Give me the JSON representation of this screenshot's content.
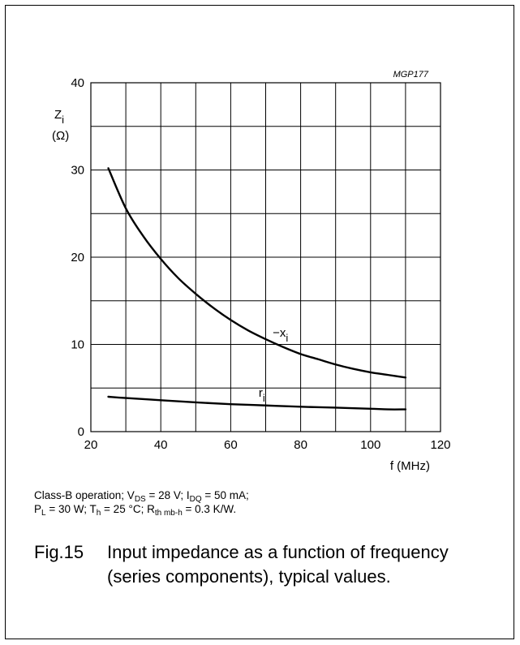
{
  "chart_data": {
    "type": "line",
    "code": "MGP177",
    "ylabel_symbol": "Z",
    "ylabel_sub": "i",
    "ylabel_unit": "(Ω)",
    "xlabel": "f (MHz)",
    "xlim": [
      20,
      120
    ],
    "ylim": [
      0,
      40
    ],
    "xticks": [
      20,
      40,
      60,
      80,
      100,
      120
    ],
    "yticks": [
      0,
      10,
      20,
      30,
      40
    ],
    "x_grid_step": 10,
    "y_grid_step": 5,
    "grid": true,
    "series": [
      {
        "name": "−x",
        "name_sub": "i",
        "x": [
          25,
          30,
          35,
          40,
          45,
          50,
          55,
          60,
          65,
          70,
          75,
          80,
          85,
          90,
          95,
          100,
          105,
          110
        ],
        "y": [
          30.2,
          25.6,
          22.4,
          19.8,
          17.6,
          15.8,
          14.2,
          12.8,
          11.6,
          10.6,
          9.7,
          8.9,
          8.3,
          7.7,
          7.2,
          6.8,
          6.5,
          6.2
        ]
      },
      {
        "name": "r",
        "name_sub": "i",
        "x": [
          25,
          30,
          40,
          50,
          60,
          70,
          80,
          90,
          100,
          105,
          110
        ],
        "y": [
          4.0,
          3.85,
          3.6,
          3.35,
          3.15,
          3.0,
          2.85,
          2.75,
          2.62,
          2.55,
          2.55
        ]
      }
    ]
  },
  "conditions": {
    "line1": {
      "a": "Class-B operation; V",
      "a_sub": "DS",
      "b": " = 28 V; I",
      "b_sub": "DQ",
      "c": " = 50 mA;"
    },
    "line2": {
      "a": "P",
      "a_sub": "L",
      "b": " = 30 W; T",
      "b_sub": "h",
      "c": " = 25 °C; R",
      "c_sub": "th mb-h",
      "d": " = 0.3 K/W."
    }
  },
  "caption": {
    "number": "Fig.15",
    "line1": "Input impedance as a function of frequency",
    "line2": "(series components), typical values."
  },
  "colors": {
    "line": "#000000",
    "grid": "#000000"
  }
}
